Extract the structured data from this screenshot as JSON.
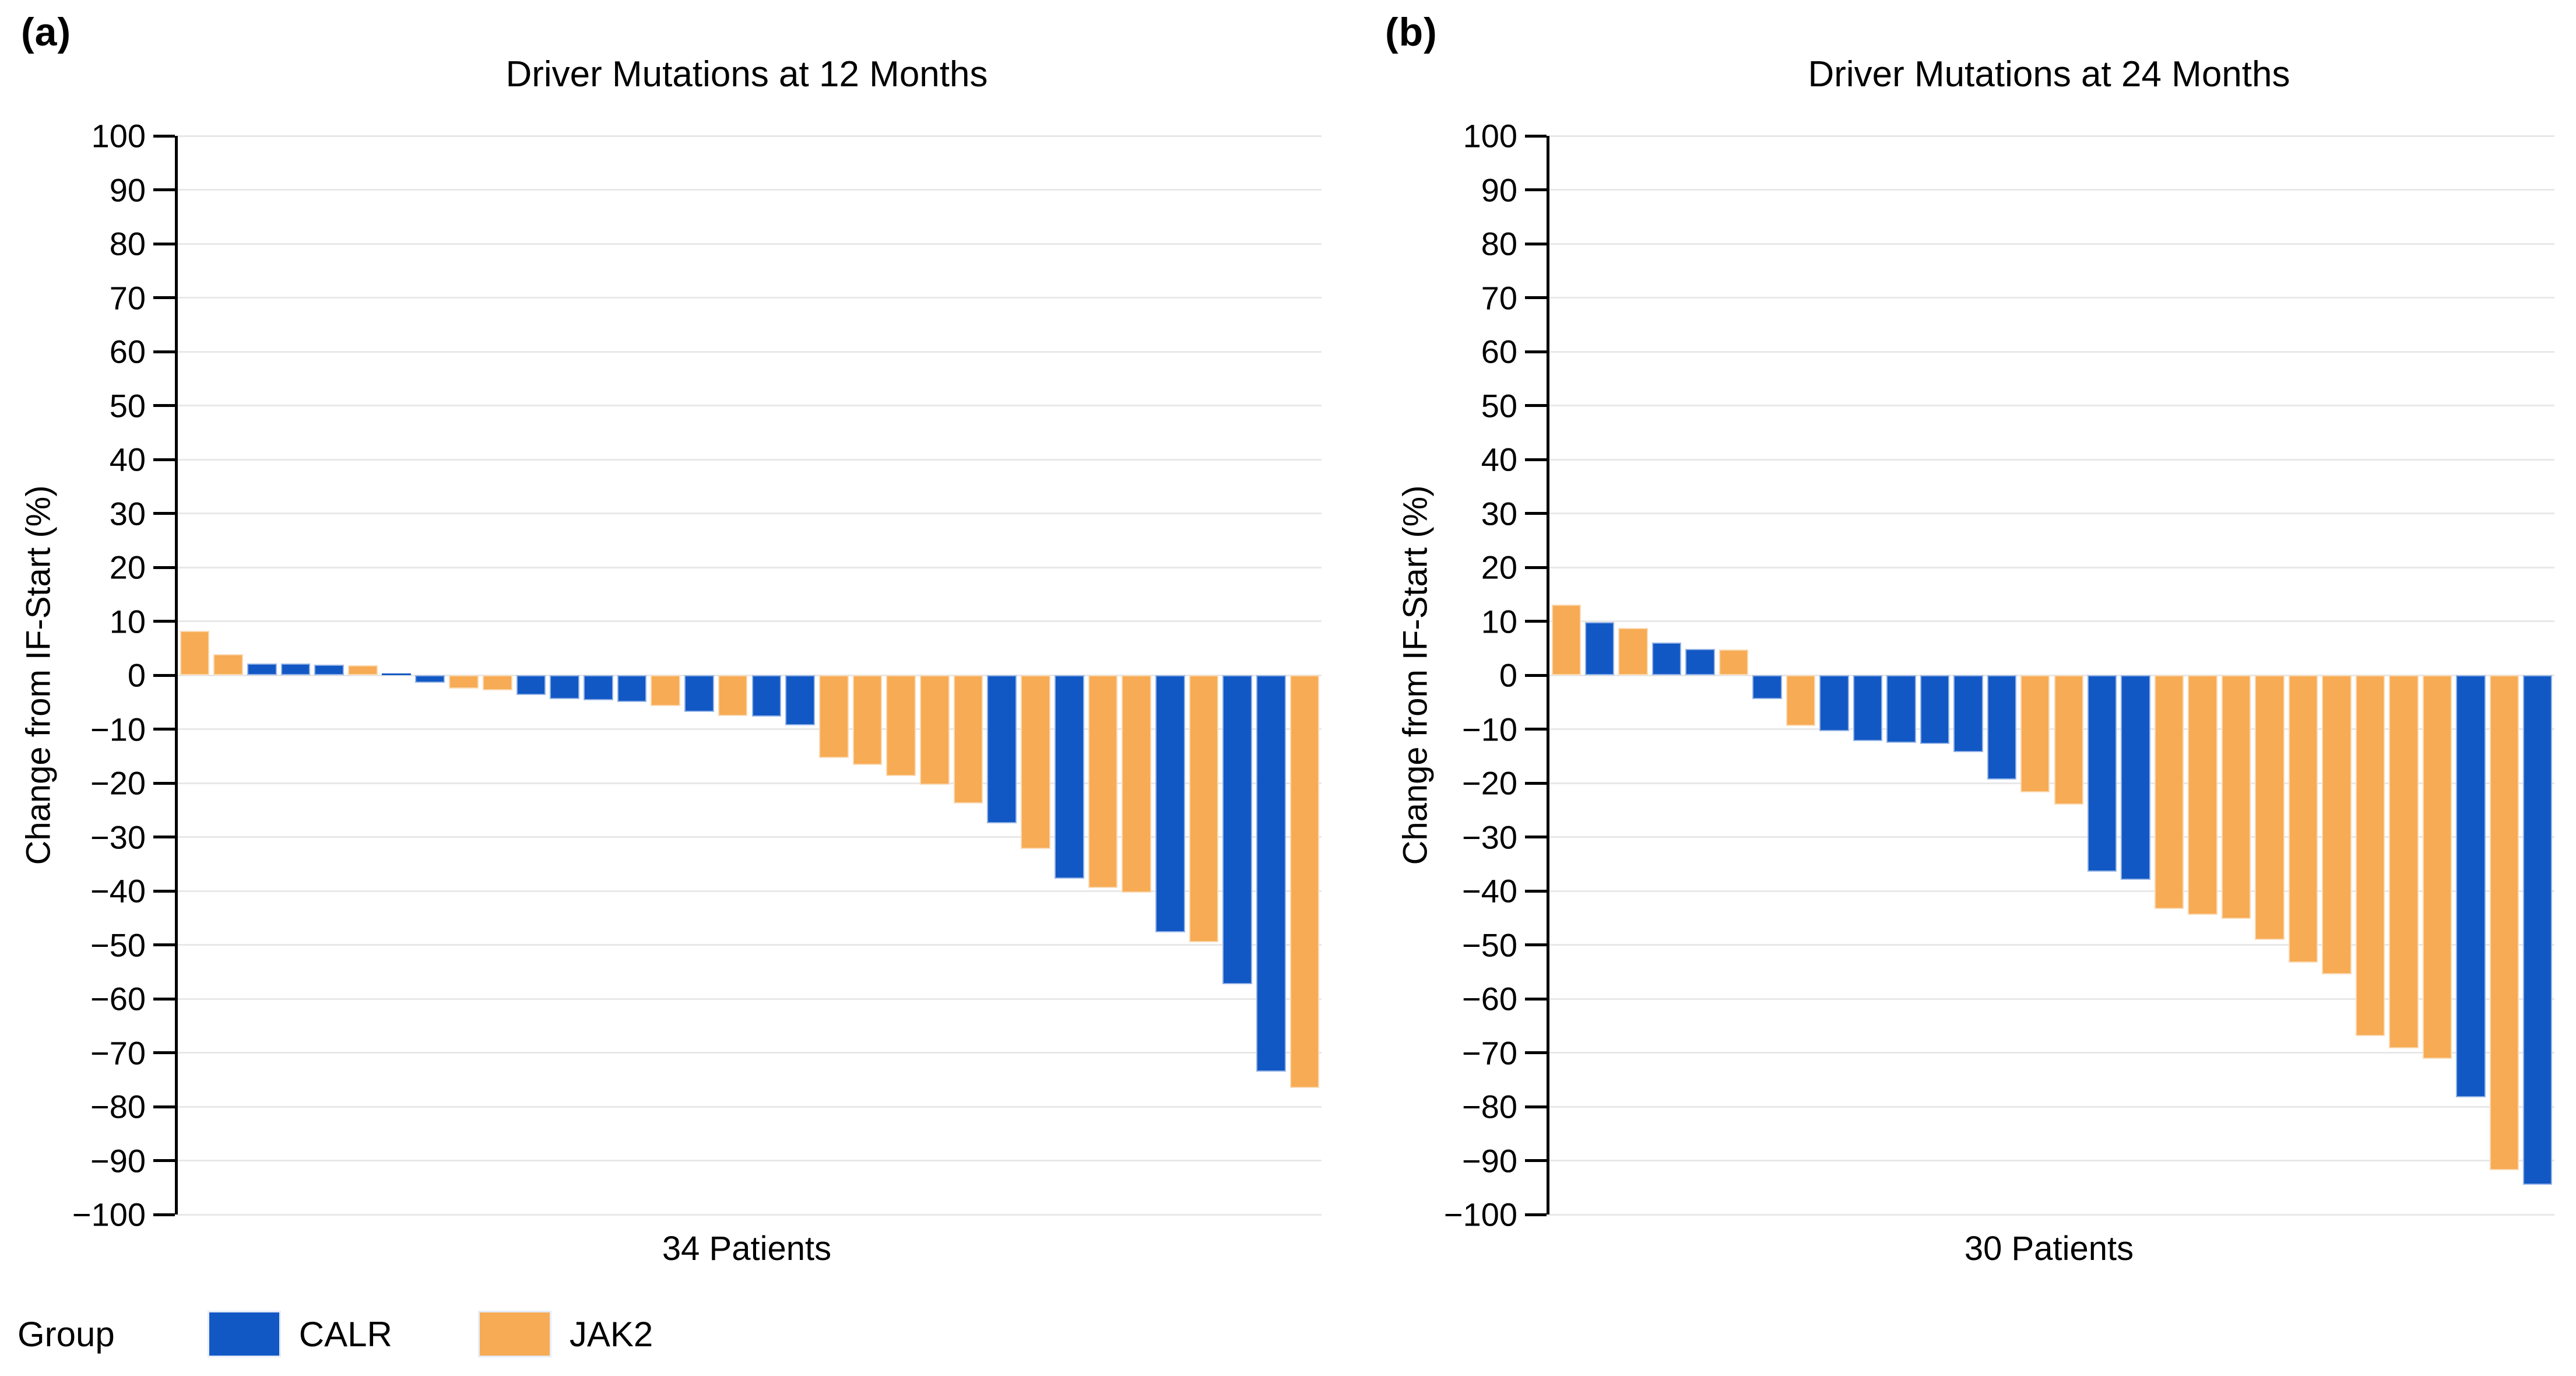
{
  "panels": [
    {
      "letter": "(a)"
    },
    {
      "letter": "(b)"
    }
  ],
  "legend": {
    "title": "Group",
    "entries": [
      {
        "label": "CALR",
        "color": "#1258c5"
      },
      {
        "label": "JAK2",
        "color": "#f6ab54"
      }
    ]
  },
  "colors": {
    "CALR": "#1258c5",
    "JAK2": "#f6ab54",
    "gridline": "#e8e8e8",
    "axis": "#000000"
  },
  "chart_data": [
    {
      "type": "bar",
      "title": "Driver Mutations at 12 Months",
      "xlabel": "34 Patients",
      "ylabel": "Change from IF-Start (%)",
      "ylim": [
        -100,
        100
      ],
      "ytick_step": 10,
      "yticks": [
        100,
        90,
        80,
        70,
        60,
        50,
        40,
        30,
        20,
        10,
        0,
        -10,
        -20,
        -30,
        -40,
        -50,
        -60,
        -70,
        -80,
        -90,
        -100
      ],
      "grid": "horizontal",
      "legend_key": "Group",
      "bars": [
        {
          "group": "JAK2",
          "value": 8.2
        },
        {
          "group": "JAK2",
          "value": 3.9
        },
        {
          "group": "CALR",
          "value": 2.2
        },
        {
          "group": "CALR",
          "value": 2.2
        },
        {
          "group": "CALR",
          "value": 1.9
        },
        {
          "group": "JAK2",
          "value": 1.8
        },
        {
          "group": "CALR",
          "value": 0.3
        },
        {
          "group": "CALR",
          "value": -1.4
        },
        {
          "group": "JAK2",
          "value": -2.5
        },
        {
          "group": "JAK2",
          "value": -2.8
        },
        {
          "group": "CALR",
          "value": -3.7
        },
        {
          "group": "CALR",
          "value": -4.4
        },
        {
          "group": "CALR",
          "value": -4.6
        },
        {
          "group": "CALR",
          "value": -5.0
        },
        {
          "group": "JAK2",
          "value": -5.7
        },
        {
          "group": "CALR",
          "value": -6.8
        },
        {
          "group": "JAK2",
          "value": -7.6
        },
        {
          "group": "CALR",
          "value": -7.7
        },
        {
          "group": "CALR",
          "value": -9.3
        },
        {
          "group": "JAK2",
          "value": -15.3
        },
        {
          "group": "JAK2",
          "value": -16.7
        },
        {
          "group": "JAK2",
          "value": -18.7
        },
        {
          "group": "JAK2",
          "value": -20.3
        },
        {
          "group": "JAK2",
          "value": -23.8
        },
        {
          "group": "CALR",
          "value": -27.5
        },
        {
          "group": "JAK2",
          "value": -32.2
        },
        {
          "group": "CALR",
          "value": -37.7
        },
        {
          "group": "JAK2",
          "value": -39.5
        },
        {
          "group": "JAK2",
          "value": -40.3
        },
        {
          "group": "CALR",
          "value": -47.7
        },
        {
          "group": "JAK2",
          "value": -49.5
        },
        {
          "group": "CALR",
          "value": -57.3
        },
        {
          "group": "CALR",
          "value": -73.5
        },
        {
          "group": "JAK2",
          "value": -76.5
        }
      ]
    },
    {
      "type": "bar",
      "title": "Driver Mutations at 24 Months",
      "xlabel": "30 Patients",
      "ylabel": "Change from IF-Start (%)",
      "ylim": [
        -100,
        100
      ],
      "ytick_step": 10,
      "yticks": [
        100,
        90,
        80,
        70,
        60,
        50,
        40,
        30,
        20,
        10,
        0,
        -10,
        -20,
        -30,
        -40,
        -50,
        -60,
        -70,
        -80,
        -90,
        -100
      ],
      "grid": "horizontal",
      "legend_key": "Group",
      "bars": [
        {
          "group": "JAK2",
          "value": 13.1
        },
        {
          "group": "CALR",
          "value": 9.8
        },
        {
          "group": "JAK2",
          "value": 8.8
        },
        {
          "group": "CALR",
          "value": 6.1
        },
        {
          "group": "CALR",
          "value": 4.9
        },
        {
          "group": "JAK2",
          "value": 4.8
        },
        {
          "group": "CALR",
          "value": -4.4
        },
        {
          "group": "JAK2",
          "value": -9.4
        },
        {
          "group": "CALR",
          "value": -10.4
        },
        {
          "group": "CALR",
          "value": -12.2
        },
        {
          "group": "CALR",
          "value": -12.5
        },
        {
          "group": "CALR",
          "value": -12.8
        },
        {
          "group": "CALR",
          "value": -14.3
        },
        {
          "group": "CALR",
          "value": -19.4
        },
        {
          "group": "JAK2",
          "value": -21.7
        },
        {
          "group": "JAK2",
          "value": -24.0
        },
        {
          "group": "CALR",
          "value": -36.4
        },
        {
          "group": "CALR",
          "value": -37.9
        },
        {
          "group": "JAK2",
          "value": -43.3
        },
        {
          "group": "JAK2",
          "value": -44.4
        },
        {
          "group": "JAK2",
          "value": -45.2
        },
        {
          "group": "JAK2",
          "value": -49.1
        },
        {
          "group": "JAK2",
          "value": -53.3
        },
        {
          "group": "JAK2",
          "value": -55.5
        },
        {
          "group": "JAK2",
          "value": -66.9
        },
        {
          "group": "JAK2",
          "value": -69.2
        },
        {
          "group": "JAK2",
          "value": -71.1
        },
        {
          "group": "CALR",
          "value": -78.3
        },
        {
          "group": "JAK2",
          "value": -91.8
        },
        {
          "group": "CALR",
          "value": -94.5
        }
      ]
    }
  ]
}
